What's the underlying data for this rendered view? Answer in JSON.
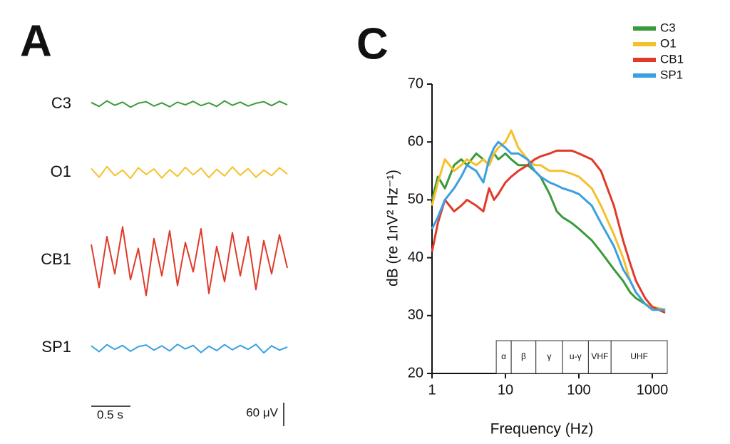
{
  "chart_data": [
    {
      "type": "traces",
      "panel": "A",
      "x": [
        0,
        0.1,
        0.2,
        0.3,
        0.4,
        0.5,
        0.6,
        0.7,
        0.8,
        0.9,
        1.0,
        1.1,
        1.2,
        1.3,
        1.4,
        1.5,
        1.6,
        1.7,
        1.8,
        1.9,
        2.0,
        2.1,
        2.2,
        2.3,
        2.4,
        2.5
      ],
      "series": [
        {
          "name": "C3",
          "color": "#3a9a3a",
          "values": [
            4,
            -6,
            8,
            -3,
            5,
            -8,
            2,
            6,
            -5,
            3,
            -7,
            5,
            -2,
            7,
            -4,
            3,
            -6,
            8,
            -3,
            5,
            -5,
            2,
            6,
            -4,
            7,
            -2
          ]
        },
        {
          "name": "O1",
          "color": "#f5c02a",
          "values": [
            10,
            -12,
            15,
            -8,
            6,
            -15,
            12,
            -5,
            9,
            -14,
            7,
            -10,
            13,
            -6,
            11,
            -13,
            8,
            -9,
            14,
            -7,
            10,
            -12,
            6,
            -8,
            12,
            -4
          ]
        },
        {
          "name": "CB1",
          "color": "#e03a2a",
          "values": [
            40,
            -70,
            60,
            -35,
            85,
            -50,
            30,
            -90,
            55,
            -40,
            75,
            -65,
            45,
            -30,
            80,
            -85,
            35,
            -55,
            70,
            -40,
            60,
            -75,
            50,
            -35,
            65,
            -20
          ]
        },
        {
          "name": "SP1",
          "color": "#3aa0e0",
          "values": [
            5,
            -10,
            8,
            -4,
            6,
            -9,
            3,
            7,
            -6,
            5,
            -8,
            9,
            -3,
            6,
            -12,
            4,
            -7,
            8,
            -5,
            6,
            -4,
            9,
            -13,
            5,
            -6,
            2
          ]
        }
      ],
      "scalebars": [
        {
          "label": "0.5 s",
          "value": 0.5
        },
        {
          "label": "60 μV",
          "value": 60
        }
      ]
    },
    {
      "type": "line",
      "panel": "C",
      "xlabel": "Frequency (Hz)",
      "ylabel": "dB (re 1nV² Hz⁻¹)",
      "log_x": true,
      "xlim": [
        1,
        1600
      ],
      "xticks": [
        1,
        10,
        100,
        1000
      ],
      "ylim": [
        20,
        70
      ],
      "yticks": [
        20,
        30,
        40,
        50,
        60,
        70
      ],
      "x": [
        1,
        1.2,
        1.5,
        2,
        2.5,
        3,
        4,
        5,
        6,
        7,
        8,
        10,
        12,
        15,
        20,
        25,
        30,
        40,
        50,
        60,
        80,
        100,
        150,
        200,
        300,
        400,
        500,
        600,
        800,
        1000,
        1500
      ],
      "series": [
        {
          "name": "C3",
          "color": "#3a9a3a",
          "values": [
            50,
            54,
            52,
            56,
            57,
            56,
            58,
            57,
            56,
            58,
            57,
            58,
            57,
            56,
            56,
            55,
            54,
            51,
            48,
            47,
            46,
            45,
            43,
            41,
            38,
            36,
            34,
            33,
            32,
            31.5,
            31
          ]
        },
        {
          "name": "O1",
          "color": "#f5c02a",
          "values": [
            49,
            53,
            57,
            55,
            56,
            57,
            56,
            57,
            56,
            58,
            59,
            60,
            62,
            59,
            57,
            56,
            56,
            55,
            55,
            55,
            54.5,
            54,
            52,
            49,
            44,
            40,
            36,
            34,
            32,
            31.5,
            31
          ]
        },
        {
          "name": "CB1",
          "color": "#e03a2a",
          "values": [
            41,
            46,
            50,
            48,
            49,
            50,
            49,
            48,
            52,
            50,
            51,
            53,
            54,
            55,
            56,
            57,
            57.5,
            58,
            58.5,
            58.5,
            58.5,
            58,
            57,
            55,
            49,
            43,
            39,
            36,
            33,
            31.5,
            30.5
          ]
        },
        {
          "name": "SP1",
          "color": "#3aa0e0",
          "values": [
            45,
            47,
            50,
            52,
            54,
            56,
            55,
            53,
            57,
            59,
            60,
            59,
            58,
            58,
            57,
            55,
            54,
            53,
            52.5,
            52,
            51.5,
            51,
            49,
            46,
            42,
            38,
            36,
            34,
            32,
            31,
            31
          ]
        }
      ],
      "bands": [
        {
          "label": "α",
          "range": [
            7.5,
            12
          ]
        },
        {
          "label": "β",
          "range": [
            12,
            26
          ]
        },
        {
          "label": "γ",
          "range": [
            26,
            60
          ]
        },
        {
          "label": "u-γ",
          "range": [
            60,
            135
          ]
        },
        {
          "label": "VHF",
          "range": [
            135,
            275
          ]
        },
        {
          "label": "UHF",
          "range": [
            275,
            1600
          ]
        }
      ]
    }
  ]
}
